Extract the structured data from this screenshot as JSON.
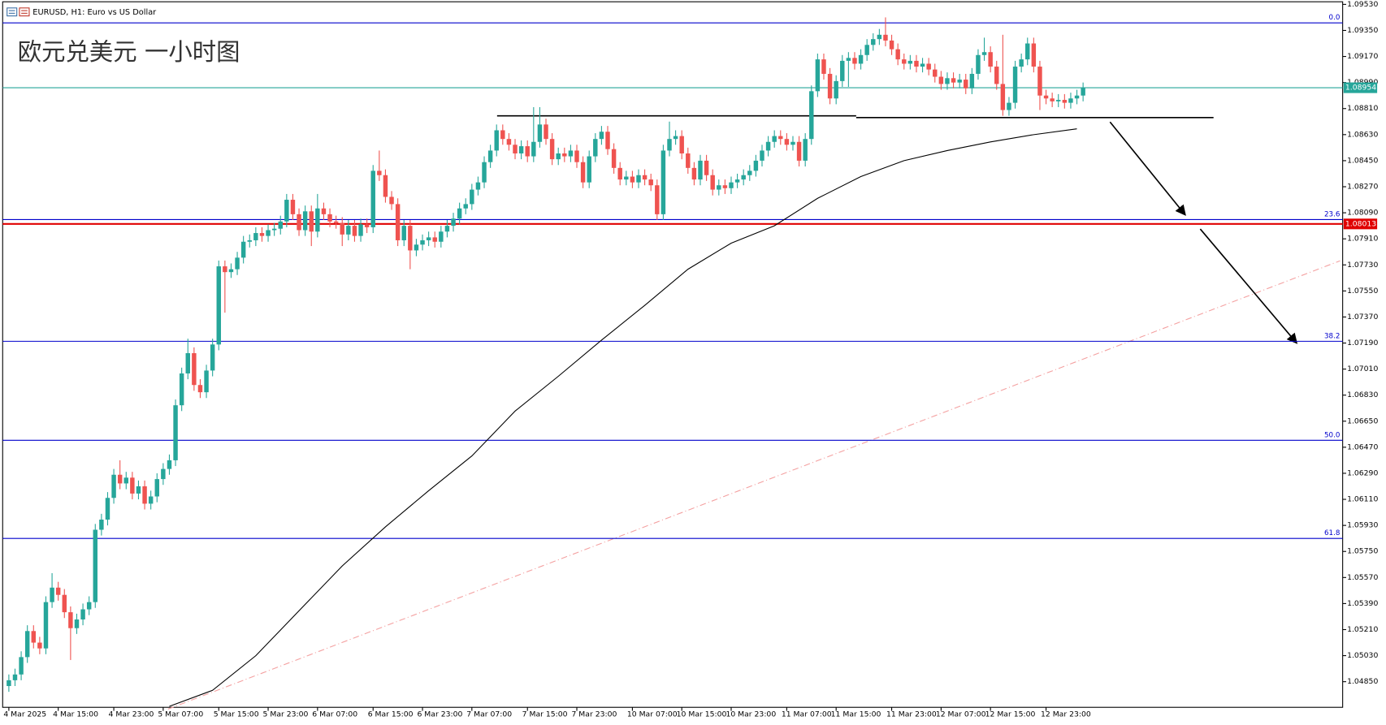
{
  "chart_data": {
    "type": "candlestick",
    "title": "EURUSD, H1:  Euro vs US Dollar",
    "annotation": "欧元兑美元 一小时图",
    "up_color": "#26a69a",
    "down_color": "#ef5350",
    "open": [
      1.0482,
      1.0486,
      1.049,
      1.0502,
      1.052,
      1.0512,
      1.0508,
      1.054,
      1.055,
      1.0545,
      1.0533,
      1.0522,
      1.0528,
      1.0535,
      1.054,
      1.059,
      1.0597,
      1.0612,
      1.0628,
      1.0622,
      1.0626,
      1.0615,
      1.062,
      1.0608,
      1.0613,
      1.0625,
      1.0632,
      1.0638,
      1.0676,
      1.0698,
      1.0712,
      1.069,
      1.0685,
      1.07,
      1.0718,
      1.0772,
      1.0768,
      1.077,
      1.0778,
      1.0789,
      1.079,
      1.0795,
      1.0793,
      1.0797,
      1.0798,
      1.0803,
      1.0818,
      1.0808,
      1.0797,
      1.081,
      1.0796,
      1.0812,
      1.0808,
      1.0803,
      1.0802,
      1.0794,
      1.08,
      1.0793,
      1.0801,
      1.0799,
      1.0838,
      1.0835,
      1.082,
      1.0815,
      1.079,
      1.08,
      1.0783,
      1.0787,
      1.079,
      1.0792,
      1.0789,
      1.0796,
      1.08,
      1.0805,
      1.0812,
      1.0815,
      1.0825,
      1.083,
      1.0844,
      1.0852,
      1.0866,
      1.086,
      1.0856,
      1.085,
      1.0855,
      1.0848,
      1.0858,
      1.087,
      1.086,
      1.0846,
      1.085,
      1.0848,
      1.0852,
      1.0844,
      1.083,
      1.0848,
      1.086,
      1.0865,
      1.0853,
      1.084,
      1.0832,
      1.0834,
      1.083,
      1.0835,
      1.0832,
      1.0828,
      1.0808,
      1.0852,
      1.086,
      1.0862,
      1.085,
      1.084,
      1.0832,
      1.0845,
      1.0835,
      1.0825,
      1.0828,
      1.0826,
      1.083,
      1.0832,
      1.0835,
      1.0838,
      1.0845,
      1.0852,
      1.0858,
      1.0862,
      1.086,
      1.0856,
      1.0858,
      1.0845,
      1.086,
      1.0893,
      1.0915,
      1.0905,
      1.0888,
      1.09,
      1.0914,
      1.0916,
      1.0912,
      1.0918,
      1.0925,
      1.0929,
      1.0932,
      1.0928,
      1.0922,
      1.0915,
      1.0912,
      1.0914,
      1.091,
      1.0912,
      1.0908,
      1.0903,
      1.0898,
      1.0902,
      1.0899,
      1.0901,
      1.0895,
      1.0905,
      1.0918,
      1.092,
      1.091,
      1.0898,
      1.088,
      1.0885,
      1.091,
      1.0915,
      1.0926,
      1.091,
      1.089,
      1.0888,
      1.0886,
      1.0887,
      1.0885,
      1.0888,
      1.089
    ],
    "high": [
      1.049,
      1.0494,
      1.0506,
      1.0524,
      1.0524,
      1.0516,
      1.0544,
      1.056,
      1.0554,
      1.0549,
      1.0537,
      1.0532,
      1.0539,
      1.0544,
      1.0594,
      1.0601,
      1.0616,
      1.0632,
      1.0638,
      1.063,
      1.063,
      1.0624,
      1.0624,
      1.0617,
      1.0629,
      1.0636,
      1.0642,
      1.068,
      1.0702,
      1.0722,
      1.0716,
      1.0694,
      1.0704,
      1.0722,
      1.0776,
      1.0776,
      1.0774,
      1.0782,
      1.0793,
      1.0794,
      1.0799,
      1.0799,
      1.0801,
      1.0802,
      1.0807,
      1.0822,
      1.0822,
      1.0812,
      1.0814,
      1.0814,
      1.0822,
      1.0816,
      1.0812,
      1.0807,
      1.0806,
      1.0804,
      1.0804,
      1.0805,
      1.0805,
      1.0842,
      1.0852,
      1.0839,
      1.0824,
      1.0819,
      1.0804,
      1.0804,
      1.0791,
      1.0794,
      1.0796,
      1.0796,
      1.08,
      1.0804,
      1.0809,
      1.0816,
      1.0819,
      1.0829,
      1.0834,
      1.0848,
      1.0856,
      1.087,
      1.087,
      1.0864,
      1.086,
      1.0859,
      1.0859,
      1.0882,
      1.0882,
      1.0874,
      1.0864,
      1.0854,
      1.0854,
      1.0856,
      1.0856,
      1.0848,
      1.0852,
      1.0864,
      1.0869,
      1.0869,
      1.0857,
      1.0844,
      1.0838,
      1.0838,
      1.0839,
      1.0839,
      1.0836,
      1.0832,
      1.0856,
      1.0872,
      1.0866,
      1.0866,
      1.0854,
      1.0844,
      1.0849,
      1.0849,
      1.0839,
      1.0832,
      1.0832,
      1.0834,
      1.0836,
      1.0839,
      1.0842,
      1.0849,
      1.0856,
      1.0862,
      1.0866,
      1.0866,
      1.0864,
      1.0862,
      1.0862,
      1.0864,
      1.0897,
      1.0919,
      1.0919,
      1.0909,
      1.0904,
      1.0918,
      1.092,
      1.092,
      1.0922,
      1.0929,
      1.0933,
      1.0936,
      1.0944,
      1.0932,
      1.0926,
      1.0919,
      1.0918,
      1.0918,
      1.0916,
      1.0916,
      1.0912,
      1.0907,
      1.0906,
      1.0906,
      1.0905,
      1.0905,
      1.0909,
      1.0922,
      1.093,
      1.0924,
      1.0914,
      1.0932,
      1.0889,
      1.0914,
      1.0919,
      1.093,
      1.093,
      1.0914,
      1.0894,
      1.0892,
      1.0891,
      1.0891,
      1.0892,
      1.0894,
      1.0899
    ],
    "low": [
      1.0478,
      1.0482,
      1.0486,
      1.0498,
      1.0508,
      1.0504,
      1.0504,
      1.0536,
      1.0541,
      1.0529,
      1.05,
      1.0518,
      1.0524,
      1.0531,
      1.0536,
      1.0586,
      1.0593,
      1.0608,
      1.0618,
      1.0618,
      1.0611,
      1.0611,
      1.0604,
      1.0604,
      1.0609,
      1.0621,
      1.0628,
      1.0634,
      1.0672,
      1.0694,
      1.0686,
      1.0681,
      1.0681,
      1.0696,
      1.0714,
      1.074,
      1.0764,
      1.0766,
      1.0774,
      1.0785,
      1.0786,
      1.0789,
      1.0789,
      1.0793,
      1.0794,
      1.0799,
      1.0804,
      1.0793,
      1.0793,
      1.0786,
      1.0792,
      1.0804,
      1.0799,
      1.0798,
      1.0786,
      1.079,
      1.0789,
      1.0789,
      1.0795,
      1.0795,
      1.0831,
      1.0816,
      1.0811,
      1.0786,
      1.0786,
      1.077,
      1.0779,
      1.0783,
      1.0786,
      1.0785,
      1.0785,
      1.0792,
      1.0796,
      1.0801,
      1.0808,
      1.0811,
      1.0821,
      1.0826,
      1.084,
      1.0848,
      1.0856,
      1.0852,
      1.0846,
      1.0846,
      1.0844,
      1.0844,
      1.0854,
      1.0856,
      1.0842,
      1.0842,
      1.0844,
      1.0844,
      1.084,
      1.0826,
      1.0826,
      1.0844,
      1.0856,
      1.0849,
      1.0836,
      1.0828,
      1.0828,
      1.0826,
      1.0826,
      1.0828,
      1.0824,
      1.0804,
      1.0804,
      1.0848,
      1.0856,
      1.0846,
      1.0836,
      1.0828,
      1.0828,
      1.0831,
      1.0821,
      1.0821,
      1.0822,
      1.0822,
      1.0826,
      1.0828,
      1.0831,
      1.0834,
      1.0841,
      1.0848,
      1.0854,
      1.0856,
      1.0852,
      1.0852,
      1.0841,
      1.0841,
      1.0856,
      1.0889,
      1.0901,
      1.0884,
      1.0884,
      1.0896,
      1.0896,
      1.0908,
      1.0908,
      1.0914,
      1.0921,
      1.0925,
      1.0924,
      1.0918,
      1.0911,
      1.0908,
      1.0908,
      1.0906,
      1.0906,
      1.0904,
      1.0899,
      1.0894,
      1.0894,
      1.0895,
      1.0895,
      1.0891,
      1.0891,
      1.0901,
      1.0914,
      1.0906,
      1.0894,
      1.0876,
      1.0876,
      1.0881,
      1.0906,
      1.0911,
      1.0906,
      1.088,
      1.0884,
      1.0882,
      1.0882,
      1.0881,
      1.0881,
      1.0884,
      1.0886
    ],
    "close": [
      1.0486,
      1.049,
      1.0502,
      1.052,
      1.0512,
      1.0508,
      1.054,
      1.055,
      1.0545,
      1.0533,
      1.0522,
      1.0528,
      1.0535,
      1.054,
      1.059,
      1.0597,
      1.0612,
      1.0628,
      1.0622,
      1.0626,
      1.0615,
      1.062,
      1.0608,
      1.0613,
      1.0625,
      1.0632,
      1.0638,
      1.0676,
      1.0698,
      1.0712,
      1.069,
      1.0685,
      1.07,
      1.0718,
      1.0772,
      1.0768,
      1.077,
      1.0778,
      1.0789,
      1.079,
      1.0795,
      1.0793,
      1.0797,
      1.0798,
      1.0803,
      1.0818,
      1.0808,
      1.0797,
      1.081,
      1.0796,
      1.0812,
      1.0808,
      1.0803,
      1.0802,
      1.0794,
      1.08,
      1.0793,
      1.0801,
      1.0799,
      1.0838,
      1.0835,
      1.082,
      1.0815,
      1.079,
      1.08,
      1.0783,
      1.0787,
      1.079,
      1.0792,
      1.0789,
      1.0796,
      1.08,
      1.0805,
      1.0812,
      1.0815,
      1.0825,
      1.083,
      1.0844,
      1.0852,
      1.0866,
      1.086,
      1.0856,
      1.085,
      1.0855,
      1.0848,
      1.0858,
      1.087,
      1.086,
      1.0846,
      1.085,
      1.0848,
      1.0852,
      1.0844,
      1.083,
      1.0848,
      1.086,
      1.0865,
      1.0853,
      1.084,
      1.0832,
      1.0834,
      1.083,
      1.0835,
      1.0832,
      1.0828,
      1.0808,
      1.0852,
      1.086,
      1.0862,
      1.085,
      1.084,
      1.0832,
      1.0845,
      1.0835,
      1.0825,
      1.0828,
      1.0826,
      1.083,
      1.0832,
      1.0835,
      1.0838,
      1.0845,
      1.0852,
      1.0858,
      1.0862,
      1.086,
      1.0856,
      1.0858,
      1.0845,
      1.086,
      1.0893,
      1.0915,
      1.0905,
      1.0888,
      1.09,
      1.0914,
      1.0916,
      1.0912,
      1.0918,
      1.0925,
      1.0929,
      1.0932,
      1.0928,
      1.0922,
      1.0915,
      1.0912,
      1.0914,
      1.091,
      1.0912,
      1.0908,
      1.0903,
      1.0898,
      1.0902,
      1.0899,
      1.0901,
      1.0895,
      1.0905,
      1.0918,
      1.092,
      1.091,
      1.0898,
      1.088,
      1.0885,
      1.091,
      1.0915,
      1.0926,
      1.091,
      1.089,
      1.0888,
      1.0886,
      1.0887,
      1.0885,
      1.0888,
      1.089,
      1.08954
    ],
    "ma": {
      "color": "#000000",
      "x": [
        26,
        33,
        40,
        47,
        54,
        61,
        68,
        75,
        82,
        89,
        96,
        103,
        110,
        117,
        124,
        131,
        138,
        145,
        152,
        159,
        166,
        173
      ],
      "values": [
        1.0468,
        1.0479,
        1.0503,
        1.0534,
        1.0565,
        1.0592,
        1.0617,
        1.0641,
        1.0672,
        1.0696,
        1.0721,
        1.0745,
        1.077,
        1.0788,
        1.08,
        1.0819,
        1.0834,
        1.0845,
        1.0852,
        1.0858,
        1.0863,
        1.0867
      ]
    },
    "levels": [
      {
        "label": "0.0",
        "value": 1.09402,
        "color": "#0000cc"
      },
      {
        "label": "23.6",
        "value": 1.08043,
        "color": "#0000cc"
      },
      {
        "label": "38.2",
        "value": 1.07202,
        "color": "#0000cc"
      },
      {
        "label": "50.0",
        "value": 1.06518,
        "color": "#0000cc"
      },
      {
        "label": "61.8",
        "value": 1.0584,
        "color": "#0000cc"
      }
    ],
    "price_lines": [
      {
        "label": "1.08954",
        "value": 1.08954,
        "color": "#26a69a"
      },
      {
        "label": "1.08013",
        "value": 1.08013,
        "color": "#e00000"
      }
    ],
    "ylim": [
      1.04673,
      1.09548
    ],
    "yticks": [
      {
        "value": 1.0953,
        "label": "1.09530"
      },
      {
        "value": 1.0935,
        "label": "1.09350"
      },
      {
        "value": 1.0917,
        "label": "1.09170"
      },
      {
        "value": 1.0899,
        "label": "1.08990"
      },
      {
        "value": 1.0881,
        "label": "1.08810"
      },
      {
        "value": 1.0863,
        "label": "1.08630"
      },
      {
        "value": 1.0845,
        "label": "1.08450"
      },
      {
        "value": 1.0827,
        "label": "1.08270"
      },
      {
        "value": 1.0809,
        "label": "1.08090"
      },
      {
        "value": 1.0791,
        "label": "1.07910"
      },
      {
        "value": 1.0773,
        "label": "1.07730"
      },
      {
        "value": 1.0755,
        "label": "1.07550"
      },
      {
        "value": 1.0737,
        "label": "1.07370"
      },
      {
        "value": 1.0719,
        "label": "1.07190"
      },
      {
        "value": 1.0701,
        "label": "1.07010"
      },
      {
        "value": 1.0683,
        "label": "1.06830"
      },
      {
        "value": 1.0665,
        "label": "1.06650"
      },
      {
        "value": 1.0647,
        "label": "1.06470"
      },
      {
        "value": 1.0629,
        "label": "1.06290"
      },
      {
        "value": 1.0611,
        "label": "1.06110"
      },
      {
        "value": 1.0593,
        "label": "1.05930"
      },
      {
        "value": 1.0575,
        "label": "1.05750"
      },
      {
        "value": 1.0557,
        "label": "1.05570"
      },
      {
        "value": 1.0539,
        "label": "1.05390"
      },
      {
        "value": 1.0521,
        "label": "1.05210"
      },
      {
        "value": 1.0503,
        "label": "1.05030"
      },
      {
        "value": 1.0485,
        "label": "1.04850"
      }
    ],
    "xticks": [
      {
        "value": 0,
        "label": "4 Mar 2025"
      },
      {
        "value": 8,
        "label": "4 Mar 15:00"
      },
      {
        "value": 17,
        "label": "4 Mar 23:00"
      },
      {
        "value": 25,
        "label": "5 Mar 07:00"
      },
      {
        "value": 34,
        "label": "5 Mar 15:00"
      },
      {
        "value": 42,
        "label": "5 Mar 23:00"
      },
      {
        "value": 50,
        "label": "6 Mar 07:00"
      },
      {
        "value": 59,
        "label": "6 Mar 15:00"
      },
      {
        "value": 67,
        "label": "6 Mar 23:00"
      },
      {
        "value": 75,
        "label": "7 Mar 07:00"
      },
      {
        "value": 84,
        "label": "7 Mar 15:00"
      },
      {
        "value": 92,
        "label": "7 Mar 23:00"
      },
      {
        "value": 101,
        "label": "10 Mar 07:00"
      },
      {
        "value": 109,
        "label": "10 Mar 15:00"
      },
      {
        "value": 117,
        "label": "10 Mar 23:00"
      },
      {
        "value": 126,
        "label": "11 Mar 07:00"
      },
      {
        "value": 134,
        "label": "11 Mar 15:00"
      },
      {
        "value": 143,
        "label": "11 Mar 23:00"
      },
      {
        "value": 151,
        "label": "12 Mar 07:00"
      },
      {
        "value": 159,
        "label": "12 Mar 15:00"
      },
      {
        "value": 168,
        "label": "12 Mar 23:00"
      }
    ]
  }
}
